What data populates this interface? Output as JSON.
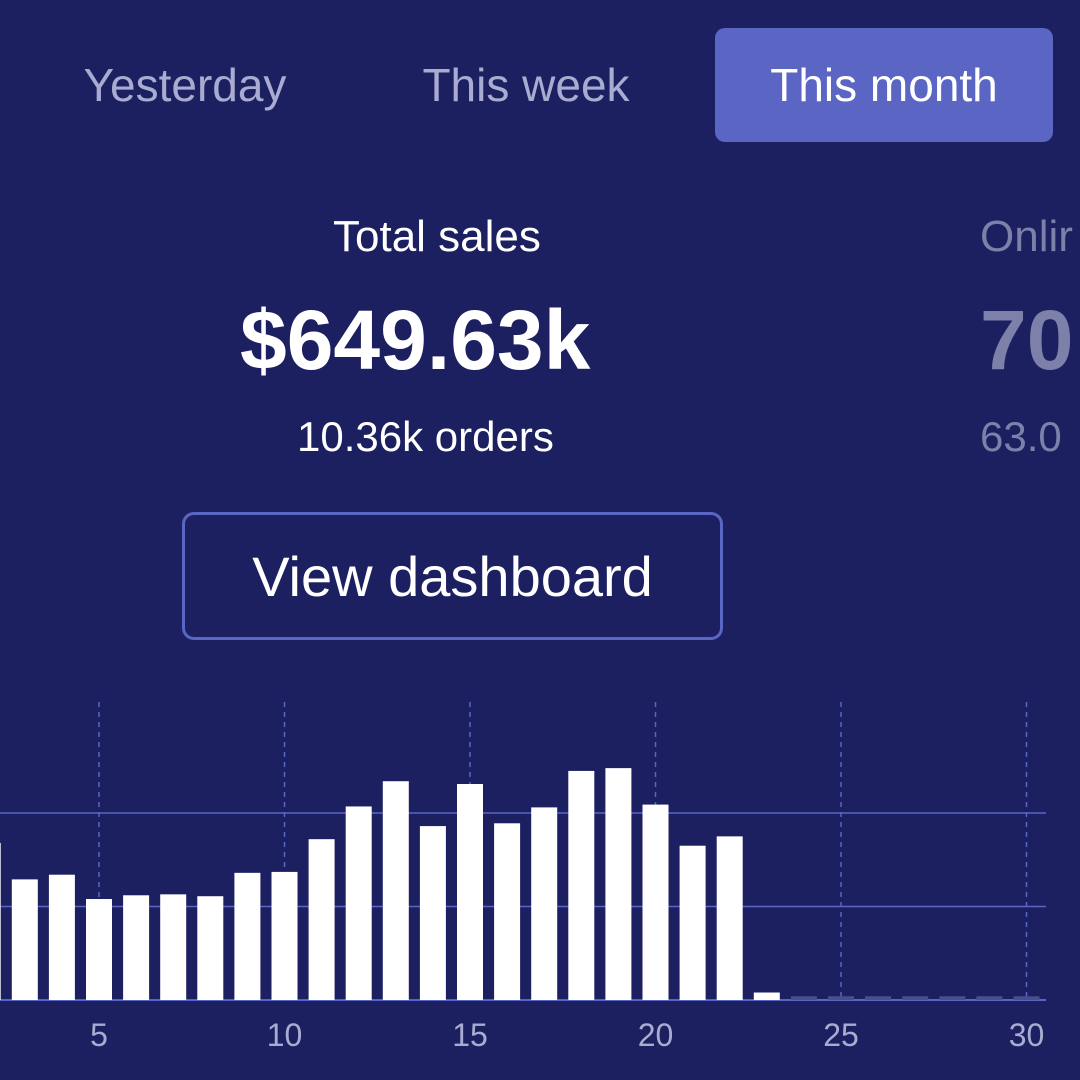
{
  "tabs": [
    {
      "label": "Yesterday",
      "active": false
    },
    {
      "label": "This week",
      "active": false
    },
    {
      "label": "This month",
      "active": true
    }
  ],
  "metrics": [
    {
      "title": "Total sales",
      "value": "$649.63k",
      "sub": "10.36k orders"
    },
    {
      "title": "Onlir",
      "value": "70",
      "sub": "63.0"
    }
  ],
  "button": {
    "label": "View dashboard"
  },
  "colors": {
    "background": "#1c2060",
    "accent": "#5b65c4",
    "bar": "#ffffff",
    "future_bar": "#4a4f8a",
    "muted_text": "#a9acd0"
  },
  "chart_data": {
    "type": "bar",
    "x": [
      2,
      3,
      4,
      5,
      6,
      7,
      8,
      9,
      10,
      11,
      12,
      13,
      14,
      15,
      16,
      17,
      18,
      19,
      20,
      21,
      22,
      23,
      24,
      25,
      26,
      27,
      28,
      29,
      30
    ],
    "values": [
      168,
      129,
      134,
      108,
      112,
      113,
      111,
      136,
      137,
      172,
      207,
      234,
      186,
      231,
      189,
      206,
      245,
      248,
      209,
      165,
      175,
      8,
      4,
      4,
      4,
      4,
      4,
      4,
      4
    ],
    "future_from_x": 24,
    "x_ticks": [
      5,
      10,
      15,
      20,
      25,
      30
    ],
    "y_gridlines": [
      100,
      200
    ],
    "ylim": [
      0,
      250
    ],
    "grid": true
  }
}
